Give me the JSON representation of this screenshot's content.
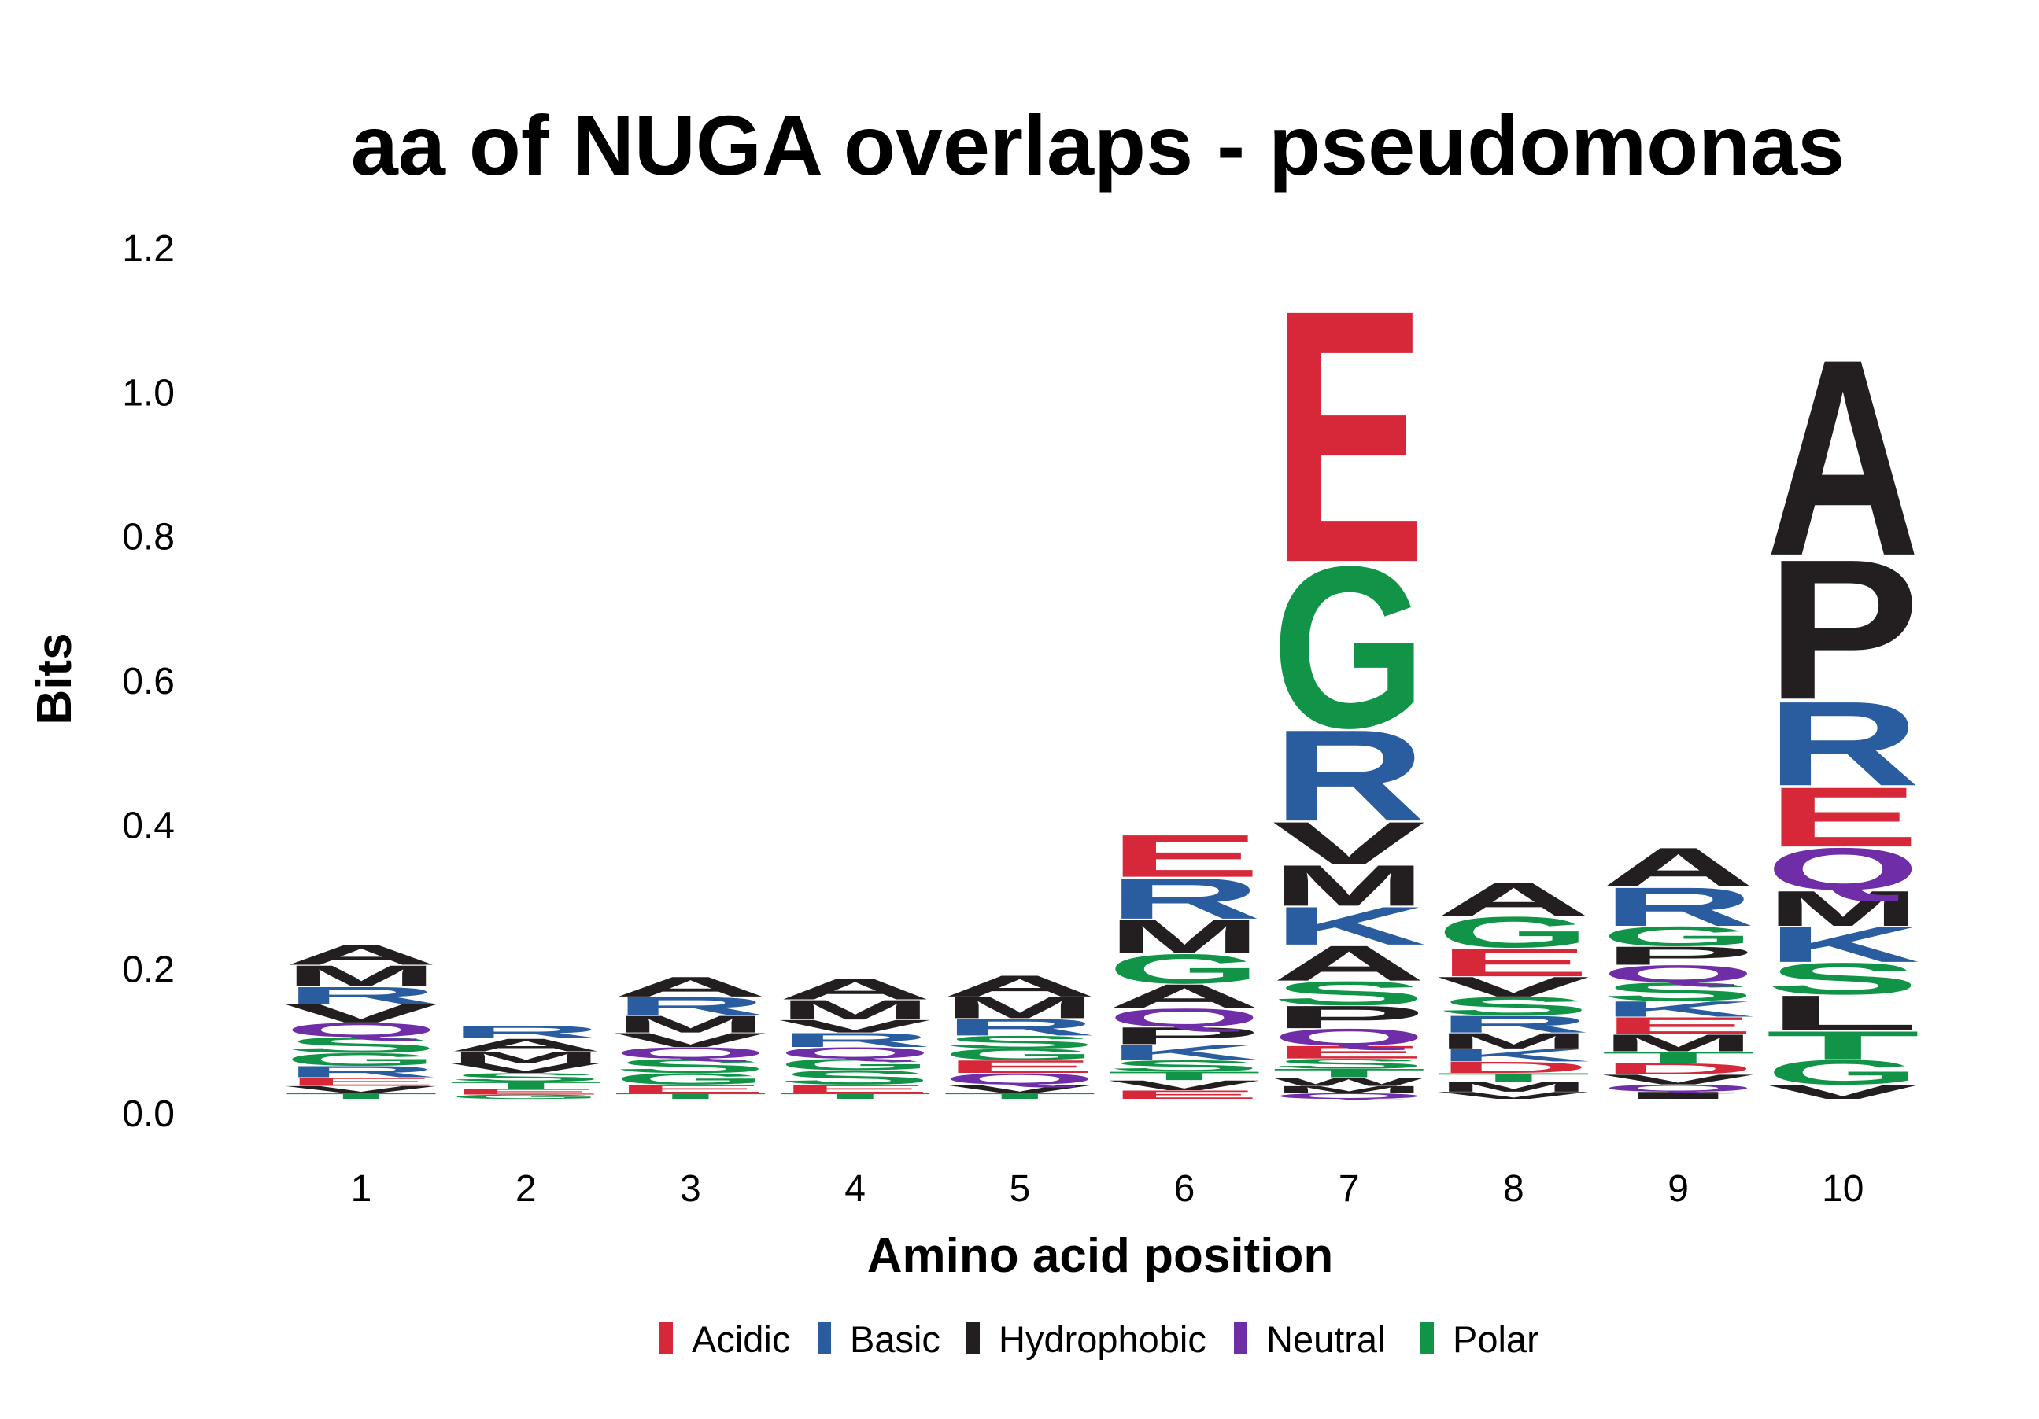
{
  "chart_data": {
    "type": "sequence-logo",
    "title": "aa of NUGA overlaps - pseudomonas",
    "xlabel": "Amino acid position",
    "ylabel": "Bits",
    "ylim": [
      0,
      1.2
    ],
    "yticks": [
      "0.0",
      "0.2",
      "0.4",
      "0.6",
      "0.8",
      "1.0",
      "1.2"
    ],
    "ytick_values": [
      0,
      0.2,
      0.4,
      0.6,
      0.8,
      1.0,
      1.2
    ],
    "positions": [
      "1",
      "2",
      "3",
      "4",
      "5",
      "6",
      "7",
      "8",
      "9",
      "10"
    ],
    "legend": [
      {
        "label": "Acidic",
        "color": "#d62839"
      },
      {
        "label": "Basic",
        "color": "#2a5d9f"
      },
      {
        "label": "Hydrophobic",
        "color": "#231f20"
      },
      {
        "label": "Neutral",
        "color": "#6f2da8"
      },
      {
        "label": "Polar",
        "color": "#119447"
      }
    ],
    "stacks": [
      [
        [
          "T",
          0.008
        ],
        [
          "V",
          0.01
        ],
        [
          "E",
          0.012
        ],
        [
          "R",
          0.016
        ],
        [
          "G",
          0.018
        ],
        [
          "S",
          0.022
        ],
        [
          "Q",
          0.02
        ],
        [
          "V",
          0.026
        ],
        [
          "R",
          0.024
        ],
        [
          "M",
          0.03
        ],
        [
          "A",
          0.028
        ]
      ],
      [
        [
          "G",
          0.006
        ],
        [
          "E",
          0.008
        ],
        [
          "T",
          0.01
        ],
        [
          "S",
          0.012
        ],
        [
          "V",
          0.014
        ],
        [
          "M",
          0.016
        ],
        [
          "A",
          0.018
        ],
        [
          "R",
          0.018
        ]
      ],
      [
        [
          "T",
          0.008
        ],
        [
          "E",
          0.012
        ],
        [
          "G",
          0.016
        ],
        [
          "S",
          0.02
        ],
        [
          "Q",
          0.016
        ],
        [
          "V",
          0.02
        ],
        [
          "M",
          0.024
        ],
        [
          "R",
          0.026
        ],
        [
          "A",
          0.028
        ]
      ],
      [
        [
          "T",
          0.008
        ],
        [
          "E",
          0.012
        ],
        [
          "S",
          0.02
        ],
        [
          "G",
          0.016
        ],
        [
          "Q",
          0.016
        ],
        [
          "R",
          0.02
        ],
        [
          "V",
          0.018
        ],
        [
          "M",
          0.028
        ],
        [
          "A",
          0.03
        ]
      ],
      [
        [
          "T",
          0.008
        ],
        [
          "V",
          0.012
        ],
        [
          "Q",
          0.016
        ],
        [
          "E",
          0.018
        ],
        [
          "G",
          0.016
        ],
        [
          "S",
          0.018
        ],
        [
          "R",
          0.024
        ],
        [
          "M",
          0.03
        ],
        [
          "A",
          0.03
        ]
      ],
      [
        [
          "E",
          0.012
        ],
        [
          "V",
          0.014
        ],
        [
          "T",
          0.012
        ],
        [
          "S",
          0.016
        ],
        [
          "K",
          0.022
        ],
        [
          "P",
          0.024
        ],
        [
          "Q",
          0.026
        ],
        [
          "A",
          0.034
        ],
        [
          "G",
          0.042
        ],
        [
          "M",
          0.048
        ],
        [
          "R",
          0.058
        ],
        [
          "E",
          0.06
        ]
      ],
      [
        [
          "Q",
          0.008
        ],
        [
          "M",
          0.01
        ],
        [
          "W",
          0.012
        ],
        [
          "T",
          0.012
        ],
        [
          "S",
          0.014
        ],
        [
          "E",
          0.018
        ],
        [
          "Q",
          0.024
        ],
        [
          "P",
          0.032
        ],
        [
          "S",
          0.034
        ],
        [
          "A",
          0.05
        ],
        [
          "K",
          0.054
        ],
        [
          "M",
          0.058
        ],
        [
          "V",
          0.06
        ],
        [
          "R",
          0.13
        ],
        [
          "G",
          0.23
        ],
        [
          "E",
          0.36
        ]
      ],
      [
        [
          "V",
          0.01
        ],
        [
          "M",
          0.014
        ],
        [
          "T",
          0.012
        ],
        [
          "D",
          0.016
        ],
        [
          "K",
          0.018
        ],
        [
          "M",
          0.022
        ],
        [
          "R",
          0.024
        ],
        [
          "S",
          0.026
        ],
        [
          "V",
          0.028
        ],
        [
          "E",
          0.04
        ],
        [
          "G",
          0.044
        ],
        [
          "A",
          0.048
        ]
      ],
      [
        [
          "I",
          0.01
        ],
        [
          "Q",
          0.01
        ],
        [
          "V",
          0.014
        ],
        [
          "D",
          0.016
        ],
        [
          "T",
          0.016
        ],
        [
          "M",
          0.024
        ],
        [
          "E",
          0.024
        ],
        [
          "K",
          0.022
        ],
        [
          "S",
          0.026
        ],
        [
          "Q",
          0.024
        ],
        [
          "P",
          0.026
        ],
        [
          "G",
          0.028
        ],
        [
          "R",
          0.055
        ],
        [
          "A",
          0.055
        ]
      ],
      [
        [
          "V",
          0.02
        ],
        [
          "G",
          0.035
        ],
        [
          "T",
          0.04
        ],
        [
          "L",
          0.05
        ],
        [
          "S",
          0.045
        ],
        [
          "K",
          0.05
        ],
        [
          "M",
          0.05
        ],
        [
          "Q",
          0.06
        ],
        [
          "E",
          0.085
        ],
        [
          "R",
          0.12
        ],
        [
          "P",
          0.2
        ],
        [
          "A",
          0.28
        ]
      ]
    ],
    "letter_groups": {
      "Acidic": [
        "D",
        "E"
      ],
      "Basic": [
        "R",
        "K",
        "H"
      ],
      "Hydrophobic": [
        "A",
        "V",
        "L",
        "I",
        "M",
        "P",
        "W",
        "F"
      ],
      "Neutral": [
        "Q",
        "N"
      ],
      "Polar": [
        "G",
        "S",
        "T",
        "Y",
        "C"
      ]
    }
  }
}
